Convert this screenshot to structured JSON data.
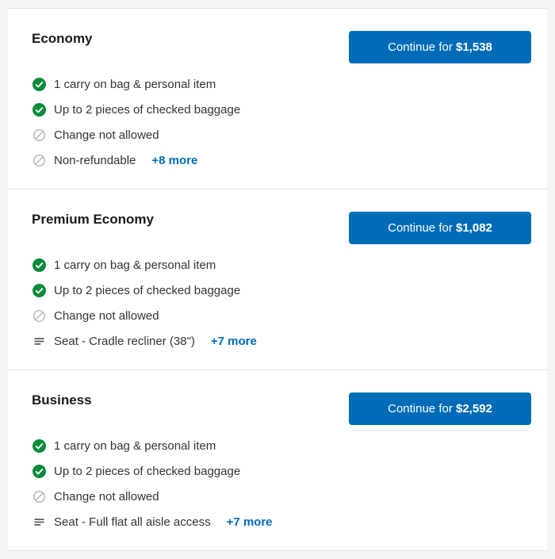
{
  "button_prefix": "Continue for ",
  "more_prefix": "+",
  "more_suffix": " more",
  "colors": {
    "primary": "#006cb7",
    "check_green": "#0a8a3a",
    "prohibit_gray": "#bfbfbf",
    "text": "#333333",
    "border": "#e0e0e0",
    "bg": "#ffffff"
  },
  "fares": [
    {
      "name": "Economy",
      "price": "$1,538",
      "features": [
        {
          "icon": "check",
          "text": "1 carry on bag & personal item"
        },
        {
          "icon": "check",
          "text": "Up to 2 pieces of checked baggage"
        },
        {
          "icon": "prohibit",
          "text": "Change not allowed"
        },
        {
          "icon": "prohibit",
          "text": "Non-refundable"
        }
      ],
      "more_count": 8
    },
    {
      "name": "Premium Economy",
      "price": "$1,082",
      "features": [
        {
          "icon": "check",
          "text": "1 carry on bag & personal item"
        },
        {
          "icon": "check",
          "text": "Up to 2 pieces of checked baggage"
        },
        {
          "icon": "prohibit",
          "text": "Change not allowed"
        },
        {
          "icon": "seat",
          "text": "Seat - Cradle recliner (38\")"
        }
      ],
      "more_count": 7
    },
    {
      "name": "Business",
      "price": "$2,592",
      "features": [
        {
          "icon": "check",
          "text": "1 carry on bag & personal item"
        },
        {
          "icon": "check",
          "text": "Up to 2 pieces of checked baggage"
        },
        {
          "icon": "prohibit",
          "text": "Change not allowed"
        },
        {
          "icon": "seat",
          "text": "Seat - Full flat all aisle access"
        }
      ],
      "more_count": 7
    }
  ]
}
